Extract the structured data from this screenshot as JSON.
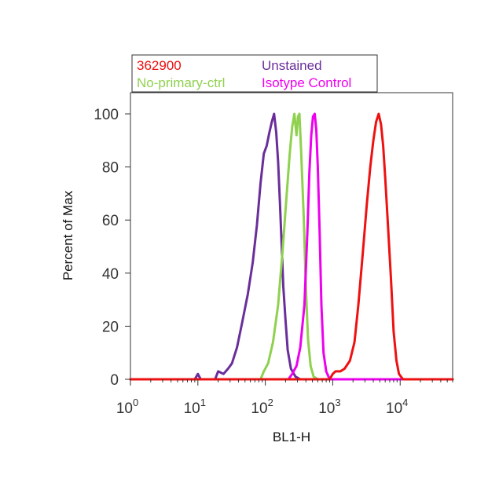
{
  "chart_data": {
    "type": "line",
    "xlabel": "BL1-H",
    "ylabel": "Percent of Max",
    "xscale": "log",
    "xlim": [
      1,
      60000
    ],
    "ylim": [
      0,
      108
    ],
    "x_ticks": [
      {
        "base": "10",
        "exp": "0",
        "value": 1
      },
      {
        "base": "10",
        "exp": "1",
        "value": 10
      },
      {
        "base": "10",
        "exp": "2",
        "value": 100
      },
      {
        "base": "10",
        "exp": "3",
        "value": 1000
      },
      {
        "base": "10",
        "exp": "4",
        "value": 10000
      }
    ],
    "y_ticks": [
      0,
      20,
      40,
      60,
      80,
      100
    ],
    "grid": false,
    "legend_position": "top-left, above plot",
    "series": [
      {
        "name": "Unstained",
        "color": "#6a2e9b",
        "points": [
          [
            1,
            0
          ],
          [
            9,
            0
          ],
          [
            10,
            2
          ],
          [
            11,
            0
          ],
          [
            18,
            0
          ],
          [
            20,
            3
          ],
          [
            24,
            2
          ],
          [
            28,
            4
          ],
          [
            32,
            6
          ],
          [
            38,
            12
          ],
          [
            45,
            21
          ],
          [
            55,
            32
          ],
          [
            65,
            44
          ],
          [
            75,
            58
          ],
          [
            85,
            74
          ],
          [
            95,
            85
          ],
          [
            105,
            88
          ],
          [
            115,
            93
          ],
          [
            125,
            97
          ],
          [
            135,
            100
          ],
          [
            145,
            93
          ],
          [
            155,
            82
          ],
          [
            165,
            66
          ],
          [
            175,
            50
          ],
          [
            185,
            35
          ],
          [
            200,
            22
          ],
          [
            215,
            11
          ],
          [
            240,
            4
          ],
          [
            280,
            1
          ],
          [
            330,
            0
          ],
          [
            60000,
            0
          ]
        ]
      },
      {
        "name": "No-primary-ctrl",
        "color": "#8fd14f",
        "points": [
          [
            1,
            0
          ],
          [
            85,
            0
          ],
          [
            95,
            3
          ],
          [
            110,
            6
          ],
          [
            130,
            14
          ],
          [
            155,
            28
          ],
          [
            180,
            48
          ],
          [
            205,
            68
          ],
          [
            230,
            85
          ],
          [
            250,
            95
          ],
          [
            270,
            100
          ],
          [
            290,
            92
          ],
          [
            305,
            99
          ],
          [
            320,
            100
          ],
          [
            340,
            86
          ],
          [
            370,
            62
          ],
          [
            400,
            34
          ],
          [
            430,
            15
          ],
          [
            470,
            5
          ],
          [
            520,
            1
          ],
          [
            600,
            0
          ],
          [
            60000,
            0
          ]
        ]
      },
      {
        "name": "Isotype Control",
        "color": "#ee00ee",
        "points": [
          [
            1,
            0
          ],
          [
            220,
            0
          ],
          [
            250,
            2
          ],
          [
            290,
            5
          ],
          [
            330,
            12
          ],
          [
            380,
            28
          ],
          [
            420,
            55
          ],
          [
            450,
            78
          ],
          [
            480,
            92
          ],
          [
            510,
            99
          ],
          [
            540,
            100
          ],
          [
            570,
            94
          ],
          [
            600,
            80
          ],
          [
            640,
            55
          ],
          [
            680,
            28
          ],
          [
            730,
            10
          ],
          [
            800,
            3
          ],
          [
            900,
            0
          ],
          [
            60000,
            0
          ]
        ]
      },
      {
        "name": "362900",
        "color": "#ee1111",
        "points": [
          [
            1,
            0
          ],
          [
            900,
            0
          ],
          [
            1000,
            2
          ],
          [
            1100,
            3
          ],
          [
            1300,
            3
          ],
          [
            1500,
            4
          ],
          [
            1800,
            7
          ],
          [
            2100,
            14
          ],
          [
            2400,
            28
          ],
          [
            2800,
            48
          ],
          [
            3200,
            66
          ],
          [
            3600,
            80
          ],
          [
            4000,
            90
          ],
          [
            4400,
            97
          ],
          [
            4800,
            100
          ],
          [
            5200,
            96
          ],
          [
            5600,
            88
          ],
          [
            6000,
            76
          ],
          [
            6600,
            58
          ],
          [
            7300,
            38
          ],
          [
            8000,
            18
          ],
          [
            8800,
            7
          ],
          [
            9600,
            2
          ],
          [
            11000,
            0
          ],
          [
            60000,
            0
          ]
        ]
      }
    ],
    "legend": [
      {
        "label": "362900",
        "color": "#ee1111"
      },
      {
        "label": "Unstained",
        "color": "#6a2e9b"
      },
      {
        "label": "No-primary-ctrl",
        "color": "#8fd14f"
      },
      {
        "label": "Isotype Control",
        "color": "#ee00ee"
      }
    ]
  }
}
